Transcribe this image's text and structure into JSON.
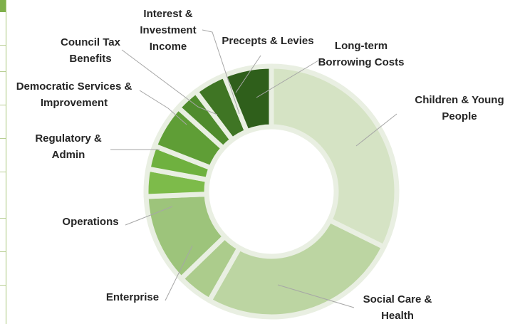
{
  "chart_data": {
    "type": "pie",
    "variant": "donut",
    "title": "",
    "slices": [
      {
        "label": "Children & Young People",
        "lines": [
          "Children & Young",
          "People"
        ],
        "value": 32.0,
        "color": "#d5e3c4"
      },
      {
        "label": "Social Care & Health",
        "lines": [
          "Social Care &",
          "Health"
        ],
        "value": 25.7,
        "color": "#bcd5a2"
      },
      {
        "label": "Enterprise",
        "lines": [
          "Enterprise"
        ],
        "value": 4.5,
        "color": "#accc8c"
      },
      {
        "label": "Operations",
        "lines": [
          "Operations"
        ],
        "value": 11.5,
        "color": "#9dc47b"
      },
      {
        "label": "Regulatory & Admin",
        "lines": [
          "Regulatory &",
          "Admin"
        ],
        "value": 3.5,
        "color": "#7dbb4a"
      },
      {
        "label": "Democratic Services & Improvement",
        "lines": [
          "Democratic Services &",
          "Improvement"
        ],
        "value": 3.0,
        "color": "#6fb13f"
      },
      {
        "label": "Council Tax Benefits",
        "lines": [
          "Council Tax",
          "Benefits"
        ],
        "value": 5.7,
        "color": "#5f9e36"
      },
      {
        "label": "Interest & Investment Income",
        "lines": [
          "Interest &",
          "Investment",
          "Income"
        ],
        "value": 3.0,
        "color": "#4f8b2d"
      },
      {
        "label": "Precepts & Levies",
        "lines": [
          "Precepts & Levies"
        ],
        "value": 4.1,
        "color": "#3f7524"
      },
      {
        "label": "Long-term Borrowing Costs",
        "lines": [
          "Long-term",
          "Borrowing Costs"
        ],
        "value": 6.1,
        "color": "#2f5f1b"
      }
    ],
    "legend": "none",
    "labels": "outside-with-leader-lines"
  }
}
